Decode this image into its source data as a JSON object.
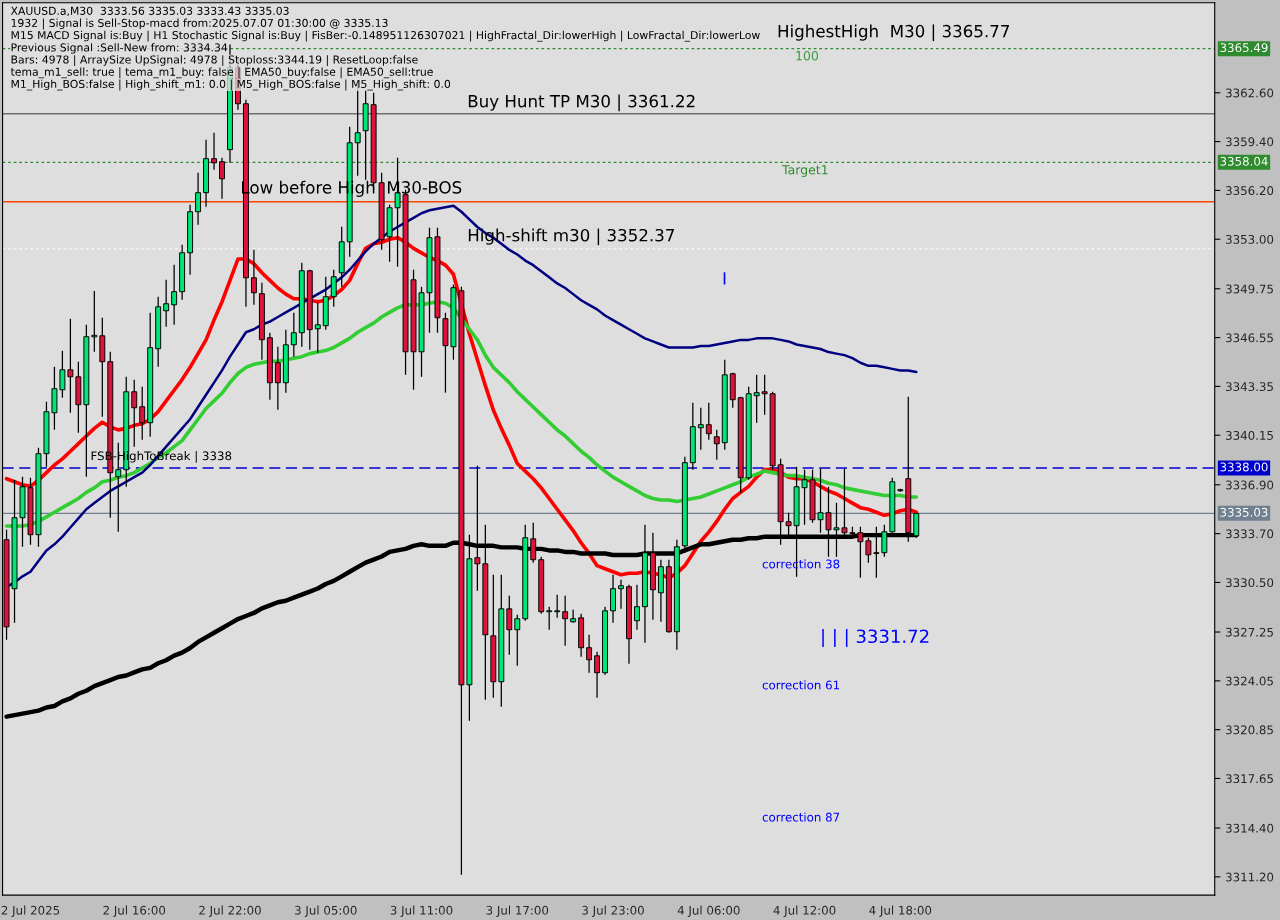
{
  "chart_data": {
    "type": "candlestick",
    "categories": [
      null,
      null,
      null,
      "2 Jul 2025",
      null,
      null,
      null,
      null,
      null,
      null,
      null,
      null,
      null,
      null,
      null,
      null,
      "2 Jul 16:00",
      null,
      null,
      null,
      null,
      null,
      null,
      null,
      null,
      null,
      null,
      null,
      "2 Jul 22:00",
      null,
      null,
      null,
      null,
      null,
      null,
      null,
      null,
      null,
      null,
      null,
      "3 Jul 05:00",
      null,
      null,
      null,
      null,
      null,
      null,
      null,
      null,
      null,
      null,
      null,
      "3 Jul 11:00",
      null,
      null,
      null,
      null,
      null,
      null,
      null,
      null,
      null,
      null,
      null,
      "3 Jul 17:00",
      null,
      null,
      null,
      null,
      null,
      null,
      null,
      null,
      null,
      null,
      null,
      "3 Jul 23:00",
      null,
      null,
      null,
      null,
      null,
      null,
      null,
      null,
      null,
      null,
      null,
      "4 Jul 06:00",
      null,
      null,
      null,
      null,
      null,
      null,
      null,
      null,
      null,
      null,
      null,
      "4 Jul 12:00",
      null,
      null,
      null,
      null,
      null,
      null,
      null,
      null,
      null,
      null,
      null,
      "4 Jul 18:00",
      null,
      null
    ],
    "ohlc": [
      [
        3333.3,
        3333.95,
        3326.74,
        3327.59
      ],
      [
        3330.09,
        3337.23,
        3327.86,
        3334.74
      ],
      [
        3334.74,
        3337.43,
        3332.84,
        3336.77
      ],
      [
        3336.71,
        3337.36,
        3332.97,
        3333.63
      ],
      [
        3333.63,
        3339.33,
        3332.84,
        3338.94
      ],
      [
        3338.94,
        3342.35,
        3338.08,
        3341.69
      ],
      [
        3341.62,
        3344.64,
        3340.51,
        3343.2
      ],
      [
        3343.13,
        3345.69,
        3342.61,
        3344.44
      ],
      [
        3344.44,
        3347.79,
        3341.62,
        3343.98
      ],
      [
        3343.98,
        3344.97,
        3340.31,
        3342.15
      ],
      [
        3342.15,
        3347.39,
        3337.43,
        3346.61
      ],
      [
        3346.6,
        3349.6,
        3345.62,
        3346.7
      ],
      [
        3346.67,
        3347.85,
        3341.36,
        3344.97
      ],
      [
        3344.97,
        3345.62,
        3334.74,
        3337.69
      ],
      [
        3337.43,
        3339.66,
        3333.82,
        3337.89
      ],
      [
        3337.89,
        3343.98,
        3336.77,
        3343.0
      ],
      [
        3343.0,
        3343.79,
        3339.39,
        3341.95
      ],
      [
        3342.02,
        3343.33,
        3339.85,
        3340.97
      ],
      [
        3340.97,
        3348.18,
        3340.05,
        3345.89
      ],
      [
        3345.82,
        3349.23,
        3344.64,
        3348.57
      ],
      [
        3348.31,
        3350.34,
        3347.26,
        3348.77
      ],
      [
        3348.7,
        3351.33,
        3347.39,
        3349.56
      ],
      [
        3349.56,
        3352.64,
        3349.03,
        3352.11
      ],
      [
        3352.11,
        3355.26,
        3350.67,
        3354.8
      ],
      [
        3354.8,
        3357.36,
        3353.95,
        3356.05
      ],
      [
        3356.05,
        3359.52,
        3355.13,
        3358.28
      ],
      [
        3358.28,
        3359.98,
        3357.55,
        3358.01
      ],
      [
        3358.08,
        3358.34,
        3355.65,
        3356.96
      ],
      [
        3358.87,
        3365.77,
        3358.01,
        3364.24
      ],
      [
        3364.24,
        3364.9,
        3361.49,
        3361.88
      ],
      [
        3361.88,
        3362.14,
        3348.57,
        3350.47
      ],
      [
        3350.47,
        3352.31,
        3348.7,
        3349.49
      ],
      [
        3349.43,
        3350.15,
        3345.1,
        3346.41
      ],
      [
        3346.54,
        3346.87,
        3342.48,
        3343.59
      ],
      [
        3344.9,
        3345.95,
        3341.82,
        3343.59
      ],
      [
        3343.59,
        3347.07,
        3342.94,
        3346.08
      ],
      [
        3346.08,
        3348.18,
        3345.3,
        3346.87
      ],
      [
        3346.87,
        3351.46,
        3345.95,
        3350.93
      ],
      [
        3350.93,
        3351.0,
        3345.75,
        3347.07
      ],
      [
        3347.13,
        3348.84,
        3345.56,
        3347.39
      ],
      [
        3347.33,
        3350.54,
        3347.07,
        3349.23
      ],
      [
        3349.23,
        3351.0,
        3348.57,
        3350.54
      ],
      [
        3350.8,
        3353.82,
        3349.88,
        3352.83
      ],
      [
        3352.83,
        3360.37,
        3351.85,
        3359.32
      ],
      [
        3359.32,
        3363.13,
        3357.16,
        3359.98
      ],
      [
        3360.11,
        3362.8,
        3356.9,
        3361.88
      ],
      [
        3361.82,
        3362.6,
        3356.24,
        3356.7
      ],
      [
        3356.7,
        3357.36,
        3352.31,
        3352.97
      ],
      [
        3353.16,
        3355.26,
        3351.52,
        3355.06
      ],
      [
        3355.06,
        3358.34,
        3351.2,
        3356.05
      ],
      [
        3355.92,
        3356.24,
        3344.11,
        3345.62
      ],
      [
        3350.34,
        3351.0,
        3343.13,
        3345.62
      ],
      [
        3345.62,
        3349.88,
        3343.98,
        3349.49
      ],
      [
        3349.49,
        3353.75,
        3346.87,
        3353.1
      ],
      [
        3353.16,
        3353.75,
        3346.87,
        3347.85
      ],
      [
        3347.79,
        3348.18,
        3342.94,
        3346.02
      ],
      [
        3345.95,
        3350.02,
        3345.1,
        3349.82
      ],
      [
        3349.62,
        3349.88,
        3311.33,
        3323.79
      ],
      [
        3323.79,
        3333.63,
        3321.43,
        3332.05
      ],
      [
        3332.12,
        3338.15,
        3329.95,
        3331.72
      ],
      [
        3331.72,
        3334.28,
        3322.81,
        3327.07
      ],
      [
        3327.0,
        3331.0,
        3322.94,
        3323.99
      ],
      [
        3323.99,
        3331.0,
        3322.35,
        3328.77
      ],
      [
        3328.77,
        3329.63,
        3325.76,
        3327.4
      ],
      [
        3327.4,
        3328.38,
        3325.04,
        3328.12
      ],
      [
        3328.12,
        3334.28,
        3327.99,
        3333.43
      ],
      [
        3333.36,
        3334.41,
        3331.79,
        3331.99
      ],
      [
        3331.99,
        3332.18,
        3328.45,
        3328.58
      ],
      [
        3328.58,
        3328.91,
        3327.4,
        3328.64
      ],
      [
        3328.58,
        3329.69,
        3328.18,
        3328.64
      ],
      [
        3328.58,
        3329.63,
        3326.35,
        3328.12
      ],
      [
        3327.92,
        3328.71,
        3327.86,
        3328.12
      ],
      [
        3328.18,
        3328.45,
        3325.63,
        3326.22
      ],
      [
        3326.22,
        3327.07,
        3324.58,
        3325.43
      ],
      [
        3325.69,
        3325.96,
        3322.94,
        3324.58
      ],
      [
        3324.58,
        3328.91,
        3324.45,
        3328.64
      ],
      [
        3328.64,
        3331.0,
        3327.86,
        3330.09
      ],
      [
        3330.09,
        3330.68,
        3328.77,
        3330.28
      ],
      [
        3330.22,
        3330.35,
        3325.17,
        3326.81
      ],
      [
        3327.99,
        3330.35,
        3327.4,
        3328.91
      ],
      [
        3328.91,
        3334.28,
        3326.54,
        3332.45
      ],
      [
        3332.45,
        3333.76,
        3328.05,
        3330.02
      ],
      [
        3329.82,
        3331.99,
        3327.92,
        3331.53
      ],
      [
        3331.53,
        3331.99,
        3327.2,
        3327.27
      ],
      [
        3327.27,
        3333.3,
        3326.09,
        3332.84
      ],
      [
        3332.9,
        3338.74,
        3332.45,
        3338.35
      ],
      [
        3338.35,
        3342.28,
        3337.89,
        3340.71
      ],
      [
        3340.64,
        3341.95,
        3339.2,
        3340.84
      ],
      [
        3340.84,
        3342.28,
        3339.85,
        3340.25
      ],
      [
        3340.05,
        3340.51,
        3338.54,
        3339.59
      ],
      [
        3339.66,
        3345.1,
        3339.2,
        3344.11
      ],
      [
        3344.18,
        3344.25,
        3341.95,
        3342.48
      ],
      [
        3342.61,
        3342.68,
        3336.38,
        3337.36
      ],
      [
        3337.36,
        3343.33,
        3337.23,
        3342.87
      ],
      [
        3342.74,
        3344.11,
        3340.97,
        3342.94
      ],
      [
        3343.0,
        3344.11,
        3341.49,
        3342.87
      ],
      [
        3342.87,
        3343.0,
        3337.89,
        3338.15
      ],
      [
        3338.21,
        3338.61,
        3332.97,
        3334.48
      ],
      [
        3334.48,
        3335.07,
        3333.49,
        3334.22
      ],
      [
        3334.22,
        3338.08,
        3330.87,
        3336.77
      ],
      [
        3336.71,
        3337.89,
        3334.28,
        3337.23
      ],
      [
        3337.23,
        3337.89,
        3334.41,
        3334.61
      ],
      [
        3334.61,
        3337.95,
        3333.76,
        3335.07
      ],
      [
        3335.07,
        3336.77,
        3332.18,
        3333.95
      ],
      [
        3333.95,
        3335.72,
        3332.18,
        3334.08
      ],
      [
        3334.08,
        3337.95,
        3333.49,
        3333.76
      ],
      [
        3333.76,
        3334.15,
        3333.43,
        3333.7
      ],
      [
        3333.76,
        3334.15,
        3330.81,
        3333.17
      ],
      [
        3333.23,
        3333.43,
        3331.79,
        3332.31
      ],
      [
        3332.45,
        3334.15,
        3330.81,
        3332.4
      ],
      [
        3332.45,
        3334.28,
        3332.18,
        3333.82
      ],
      [
        3333.82,
        3337.36,
        3333.76,
        3337.1
      ],
      [
        3336.58,
        3336.64,
        3336.45,
        3336.51
      ],
      [
        3337.3,
        3342.68,
        3333.17,
        3333.76
      ],
      [
        3333.56,
        3335.03,
        3333.43,
        3335.03
      ]
    ],
    "colors": [
      "#dc143c",
      "#00e676",
      "#00e676",
      "#dc143c",
      "#00e676",
      "#00e676",
      "#00e676",
      "#00e676",
      "#dc143c",
      "#dc143c",
      "#00e676",
      "#00e676",
      "#dc143c",
      "#dc143c",
      "#00e676",
      "#00e676",
      "#dc143c",
      "#dc143c",
      "#00e676",
      "#00e676",
      "#00e676",
      "#00e676",
      "#00e676",
      "#00e676",
      "#00e676",
      "#00e676",
      "#dc143c",
      "#dc143c",
      "#00e676",
      "#dc143c",
      "#dc143c",
      "#dc143c",
      "#dc143c",
      "#dc143c",
      "#dc143c",
      "#00e676",
      "#00e676",
      "#00e676",
      "#dc143c",
      "#00e676",
      "#00e676",
      "#00e676",
      "#00e676",
      "#00e676",
      "#00e676",
      "#00e676",
      "#dc143c",
      "#dc143c",
      "#00e676",
      "#00e676",
      "#dc143c",
      "#dc143c",
      "#00e676",
      "#00e676",
      "#dc143c",
      "#dc143c",
      "#00e676",
      "#dc143c",
      "#00e676",
      "#dc143c",
      "#dc143c",
      "#dc143c",
      "#00e676",
      "#dc143c",
      "#00e676",
      "#00e676",
      "#dc143c",
      "#dc143c",
      "#00e676",
      "#00e676",
      "#dc143c",
      "#00e676",
      "#dc143c",
      "#dc143c",
      "#dc143c",
      "#00e676",
      "#00e676",
      "#00e676",
      "#dc143c",
      "#00e676",
      "#00e676",
      "#dc143c",
      "#00e676",
      "#dc143c",
      "#00e676",
      "#00e676",
      "#00e676",
      "#00e676",
      "#dc143c",
      "#dc143c",
      "#00e676",
      "#dc143c",
      "#dc143c",
      "#00e676",
      "#00e676",
      "#dc143c",
      "#dc143c",
      "#dc143c",
      "#dc143c",
      "#00e676",
      "#00e676",
      "#dc143c",
      "#00e676",
      "#dc143c",
      "#00e676",
      "#dc143c",
      "#dc143c",
      "#dc143c",
      "#dc143c",
      "#dc143c",
      "#00e676",
      "#00e676",
      "#dc143c",
      "#dc143c",
      "#00e676"
    ],
    "series": [
      {
        "type": "line",
        "color": "#ff0000",
        "values": [
          3337.3,
          3337.1,
          3336.9,
          3336.8,
          3337.2,
          3337.7,
          3338.2,
          3338.6,
          3339.1,
          3339.6,
          3340.1,
          3340.6,
          3341.0,
          3340.7,
          3340.5,
          3340.6,
          3340.8,
          3340.9,
          3341.2,
          3341.7,
          3342.4,
          3343.1,
          3343.8,
          3344.6,
          3345.5,
          3346.4,
          3347.7,
          3348.9,
          3350.3,
          3351.7,
          3351.7,
          3351.4,
          3350.8,
          3350.3,
          3349.8,
          3349.4,
          3349.1,
          3349.1,
          3349.0,
          3348.9,
          3349.0,
          3349.3,
          3349.7,
          3350.3,
          3351.4,
          3352.4,
          3352.7,
          3352.8,
          3353.0,
          3353.1,
          3352.8,
          3352.4,
          3352.1,
          3351.8,
          3351.6,
          3351.3,
          3350.7,
          null,
          3346.8,
          3345.1,
          3343.4,
          3341.8,
          3340.6,
          3339.5,
          3338.3,
          3337.8,
          3337.3,
          3336.7,
          3336.0,
          3335.3,
          3334.6,
          3333.9,
          3333.1,
          3332.4,
          3331.6,
          3331.4,
          3331.2,
          3331.0,
          3331.1,
          3331.1,
          3331.2,
          3331.1,
          3331.0,
          3330.8,
          3331.1,
          3331.6,
          3332.4,
          3333.2,
          3333.8,
          3334.5,
          3335.3,
          3336.0,
          3336.4,
          3336.8,
          3337.4,
          3337.9,
          3337.9,
          3337.7,
          3337.4,
          3337.3,
          3337.3,
          3337.1,
          3336.8,
          3336.5,
          3336.3,
          3336.0,
          3335.7,
          3335.4,
          3335.3,
          3335.1,
          3334.9,
          3335.0,
          3335.2,
          3335.3,
          3335.1
        ]
      },
      {
        "type": "line",
        "color": "#32cd32",
        "values": [
          3334.2,
          3334.2,
          3334.2,
          3334.3,
          3334.5,
          3334.8,
          3335.1,
          3335.4,
          3335.7,
          3336.0,
          3336.4,
          3336.7,
          3337.1,
          3337.2,
          3337.4,
          3337.5,
          3337.7,
          3338.0,
          3338.3,
          3338.7,
          3339.0,
          3339.4,
          3339.8,
          3340.5,
          3341.2,
          3341.9,
          3342.4,
          3342.9,
          3343.6,
          3344.2,
          3344.6,
          3344.8,
          3344.9,
          3345.0,
          3345.0,
          3345.1,
          3345.2,
          3345.3,
          3345.5,
          3345.6,
          3345.7,
          3345.9,
          3346.2,
          3346.5,
          3346.9,
          3347.2,
          3347.5,
          3347.9,
          3348.2,
          3348.5,
          3348.7,
          3348.7,
          3348.7,
          3348.8,
          3348.9,
          3348.8,
          3348.5,
          3347.8,
          3347.1,
          3346.4,
          3345.4,
          3344.6,
          3344.1,
          3343.6,
          3343.0,
          3342.5,
          3342.0,
          3341.5,
          3341.0,
          3340.5,
          3340.1,
          3339.6,
          3339.1,
          3338.7,
          3338.2,
          3337.8,
          3337.4,
          3337.1,
          3336.8,
          3336.5,
          3336.2,
          3336.0,
          3335.9,
          3335.9,
          3335.8,
          3335.9,
          3336.0,
          3336.1,
          3336.3,
          3336.5,
          3336.7,
          3336.9,
          3337.1,
          3337.4,
          3337.6,
          3337.8,
          3337.7,
          3337.6,
          3337.5,
          3337.5,
          3337.4,
          3337.3,
          3337.2,
          3337.0,
          3336.9,
          3336.7,
          3336.6,
          3336.5,
          3336.4,
          3336.3,
          3336.2,
          3336.2,
          3336.2,
          3336.1,
          3336.1
        ]
      },
      {
        "type": "line",
        "color": "#000080",
        "values": [
          3330.2,
          3330.5,
          3330.9,
          3331.2,
          3331.9,
          3332.6,
          3333.0,
          3333.5,
          3334.1,
          3334.7,
          3335.3,
          3335.7,
          3336.1,
          3336.5,
          3336.8,
          3337.1,
          3337.4,
          3337.7,
          3338.2,
          3338.8,
          3339.4,
          3340.0,
          3340.6,
          3341.2,
          3342.0,
          3342.8,
          3343.6,
          3344.4,
          3345.3,
          3346.1,
          3346.9,
          3347.1,
          3347.4,
          3347.6,
          3347.9,
          3348.2,
          3348.5,
          3348.8,
          3349.1,
          3349.4,
          3349.7,
          3350.1,
          3350.5,
          3351.0,
          3351.6,
          3352.2,
          3352.7,
          3353.1,
          3353.5,
          3353.8,
          3354.1,
          3354.4,
          3354.7,
          3354.9,
          3355.0,
          3355.1,
          3355.2,
          3354.8,
          3354.3,
          3353.8,
          3353.4,
          3353.1,
          3352.7,
          3352.3,
          3352.0,
          3351.6,
          3351.3,
          3350.9,
          3350.5,
          3350.1,
          3349.8,
          3349.4,
          3349.0,
          3348.7,
          3348.4,
          3348.0,
          3347.7,
          3347.4,
          3347.1,
          3346.8,
          3346.5,
          3346.3,
          3346.1,
          3345.9,
          3345.9,
          3345.9,
          3345.9,
          3346.0,
          3346.0,
          3346.1,
          3346.2,
          3346.3,
          3346.4,
          3346.4,
          3346.5,
          3346.5,
          3346.5,
          3346.4,
          3346.3,
          3346.1,
          3346.0,
          3345.9,
          3345.8,
          3345.6,
          3345.5,
          3345.4,
          3345.2,
          3344.9,
          3344.7,
          3344.7,
          3344.6,
          3344.5,
          3344.4,
          3344.4,
          3344.3
        ]
      },
      {
        "type": "line",
        "color": "#000000",
        "values": [
          3321.7,
          3321.8,
          3321.9,
          3322.0,
          3322.1,
          3322.3,
          3322.4,
          3322.7,
          3322.9,
          3323.2,
          3323.4,
          3323.7,
          3323.9,
          3324.1,
          3324.3,
          3324.4,
          3324.6,
          3324.8,
          3324.9,
          3325.2,
          3325.4,
          3325.7,
          3325.9,
          3326.2,
          3326.6,
          3326.9,
          3327.2,
          3327.5,
          3327.8,
          3328.1,
          3328.3,
          3328.5,
          3328.8,
          3329.0,
          3329.2,
          3329.3,
          3329.5,
          3329.7,
          3329.9,
          3330.1,
          3330.4,
          3330.6,
          3330.9,
          3331.2,
          3331.5,
          3331.8,
          3332.0,
          3332.2,
          3332.5,
          3332.6,
          3332.7,
          3332.9,
          3333.0,
          3332.9,
          3332.9,
          3332.9,
          3333.1,
          3333.1,
          3333.0,
          3332.9,
          3332.9,
          3332.9,
          3332.8,
          3332.8,
          3332.8,
          3332.7,
          3332.7,
          3332.7,
          3332.6,
          3332.6,
          3332.5,
          3332.5,
          3332.4,
          3332.4,
          3332.4,
          3332.4,
          3332.3,
          3332.3,
          3332.3,
          3332.3,
          3332.4,
          3332.4,
          3332.4,
          3332.4,
          3332.4,
          3332.6,
          3332.8,
          3333.0,
          3333.0,
          3333.1,
          3333.2,
          3333.3,
          3333.3,
          3333.4,
          3333.4,
          3333.5,
          3333.5,
          3333.5,
          3333.5,
          3333.5,
          3333.5,
          3333.5,
          3333.5,
          3333.5,
          3333.5,
          3333.5,
          3333.5,
          3333.6,
          3333.6,
          3333.6,
          3333.6,
          3333.6,
          3333.6,
          3333.6,
          3333.6
        ]
      }
    ],
    "ylim": [
      3310.0,
      3368.5
    ],
    "yticks": [
      {
        "value": 3311.2,
        "label": "3311.20"
      },
      {
        "value": 3314.4,
        "label": "3314.40"
      },
      {
        "value": 3317.65,
        "label": "3317.65"
      },
      {
        "value": 3320.85,
        "label": "3320.85"
      },
      {
        "value": 3324.05,
        "label": "3324.05"
      },
      {
        "value": 3327.25,
        "label": "3327.25"
      },
      {
        "value": 3330.5,
        "label": "3330.50"
      },
      {
        "value": 3333.7,
        "label": "3333.70"
      },
      {
        "value": 3336.9,
        "label": "3336.90"
      },
      {
        "value": 3340.15,
        "label": "3340.15"
      },
      {
        "value": 3343.35,
        "label": "3343.35"
      },
      {
        "value": 3346.55,
        "label": "3346.55"
      },
      {
        "value": 3349.75,
        "label": "3349.75"
      },
      {
        "value": 3353.0,
        "label": "3353.00"
      },
      {
        "value": 3356.2,
        "label": "3356.20"
      },
      {
        "value": 3359.4,
        "label": "3359.40"
      },
      {
        "value": 3362.6,
        "label": "3362.60"
      }
    ],
    "ref_lines": [
      {
        "axis": "y",
        "value": 3365.49,
        "label": "3365.49",
        "color": "#2e8b2e",
        "line_style": "dotted"
      },
      {
        "axis": "y",
        "value": 3361.22,
        "color": "#6e6e6e",
        "line_style": "solid"
      },
      {
        "axis": "y",
        "value": 3358.04,
        "label": "3358.04",
        "color": "#2e8b2e",
        "line_style": "dotted"
      },
      {
        "axis": "y",
        "value": 3355.46,
        "color": "#ff4500",
        "line_style": "solid"
      },
      {
        "axis": "y",
        "value": 3352.37,
        "color": "#f4f4f4",
        "line_style": "dotted"
      },
      {
        "axis": "y",
        "value": 3338.0,
        "label": "3338.00",
        "color": "#0000cd",
        "line_style": "dashed"
      },
      {
        "axis": "y",
        "value": 3335.03,
        "label": "3335.03",
        "color": "#708090",
        "line_style": "solid"
      }
    ],
    "annotations": [
      "XAUUSD.a,M30  3333.56 3335.03 3333.43 3335.03",
      "1932 | Signal is Sell-Stop-macd from:2025.07.07 01:30:00 @ 3335.13",
      "M15 MACD Signal is:Buy | H1 Stochastic Signal is:Buy | FisBer:-0.148951126307021 | HighFractal_Dir:lowerHigh | LowFractal_Dir:lowerLow",
      "Previous Signal :Sell-New from: 3334.34",
      "Bars: 4978 | ArraySize UpSignal: 4978 | Stoploss:3344.19 | ResetLoop:false",
      "tema_m1_sell: true | tema_m1_buy: false | EMA50_buy:false | EMA50_sell:true",
      "M1_High_BOS:false | High_shift_m1: 0.0 | M5_High_BOS:false | M5_High_shift: 0.0",
      "HighestHigh  M30 | 3365.77",
      "100",
      "Target1",
      "Buy Hunt TP M30 | 3361.22",
      "Low before High  M30-BOS",
      "High-shift m30 | 3352.37",
      "FSB-HighToBreak | 3338",
      "I",
      "correction 38",
      "| | | 3331.72",
      "correction 61",
      "correction 87"
    ]
  }
}
